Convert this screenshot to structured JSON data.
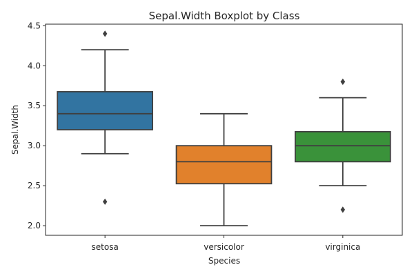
{
  "chart_data": {
    "type": "box",
    "title": "Sepal.Width Boxplot by Class",
    "xlabel": "Species",
    "ylabel": "Sepal.Width",
    "ylim": [
      1.88,
      4.52
    ],
    "yticks": [
      "2.0",
      "2.5",
      "3.0",
      "3.5",
      "4.0",
      "4.5"
    ],
    "categories": [
      "setosa",
      "versicolor",
      "virginica"
    ],
    "boxes": [
      {
        "category": "setosa",
        "color": "#3274a1",
        "whisker_low": 2.9,
        "q1": 3.2,
        "median": 3.4,
        "q3": 3.675,
        "whisker_high": 4.2,
        "outliers": [
          4.4,
          2.3
        ]
      },
      {
        "category": "versicolor",
        "color": "#e1812c",
        "whisker_low": 2.0,
        "q1": 2.525,
        "median": 2.8,
        "q3": 3.0,
        "whisker_high": 3.4,
        "outliers": []
      },
      {
        "category": "virginica",
        "color": "#3a923a",
        "whisker_low": 2.5,
        "q1": 2.8,
        "median": 3.0,
        "q3": 3.175,
        "whisker_high": 3.6,
        "outliers": [
          3.8,
          3.8,
          2.2
        ]
      }
    ],
    "grid": false,
    "legend": "none"
  }
}
